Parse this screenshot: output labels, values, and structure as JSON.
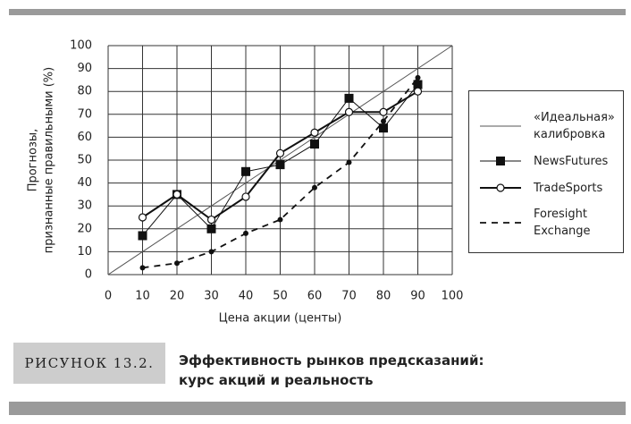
{
  "chart_data": {
    "type": "line",
    "ylabel": [
      "Прогнозы,",
      "признанные правильными (%)"
    ],
    "xlabel": "Цена акции (центы)",
    "xlim": [
      0,
      100
    ],
    "ylim": [
      0,
      100
    ],
    "xticks": [
      0,
      10,
      20,
      30,
      40,
      50,
      60,
      70,
      80,
      90,
      100
    ],
    "yticks": [
      0,
      10,
      20,
      30,
      40,
      50,
      60,
      70,
      80,
      90,
      100
    ],
    "grid": true,
    "legend": "right",
    "series": [
      {
        "name": "«Идеальная» калибровка",
        "color": "#555555",
        "line_width": 1,
        "dash": false,
        "marker": "none",
        "x": [
          0,
          100
        ],
        "values": [
          0,
          100
        ]
      },
      {
        "name": "NewsFutures",
        "color": "#111111",
        "line_width": 1,
        "dash": false,
        "marker": "square",
        "x": [
          10,
          20,
          30,
          40,
          50,
          60,
          70,
          80,
          90
        ],
        "values": [
          17,
          35,
          20,
          45,
          48,
          57,
          77,
          64,
          83
        ]
      },
      {
        "name": "TradeSports",
        "color": "#111111",
        "line_width": 2,
        "dash": false,
        "marker": "circle",
        "x": [
          10,
          20,
          30,
          40,
          50,
          60,
          70,
          80,
          90
        ],
        "values": [
          25,
          35,
          24,
          34,
          53,
          62,
          71,
          71,
          80
        ]
      },
      {
        "name": "Foresight Exchange",
        "color": "#111111",
        "line_width": 1.8,
        "dash": true,
        "marker": "dot",
        "x": [
          10,
          20,
          30,
          40,
          50,
          60,
          70,
          80,
          90
        ],
        "values": [
          3,
          5,
          10,
          18,
          24,
          38,
          49,
          67,
          86
        ]
      }
    ]
  },
  "figure_label": "РИСУНОК 13.2.",
  "caption": [
    "Эффективность рынков предсказаний:",
    "курс акций и реальность"
  ]
}
